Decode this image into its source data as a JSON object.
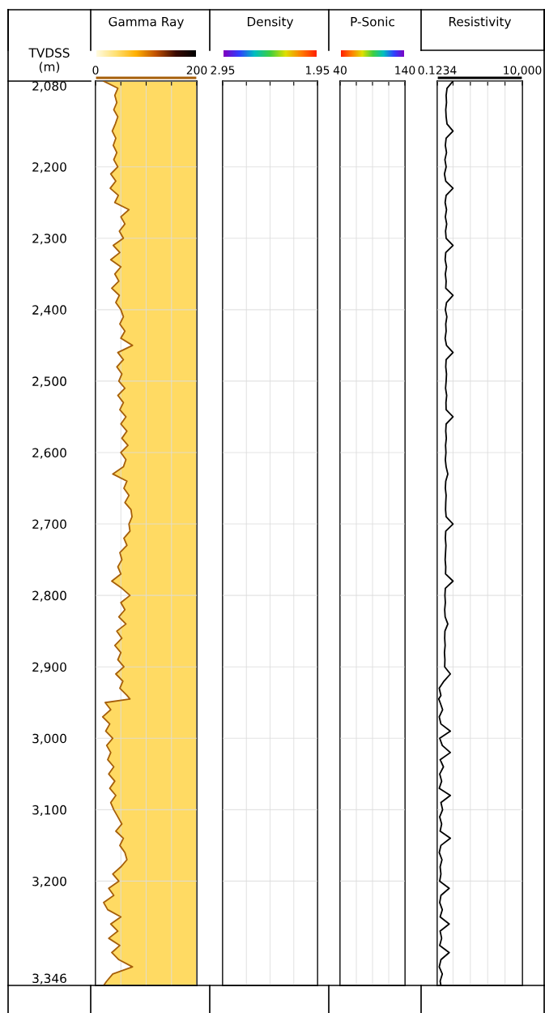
{
  "chart_data": [
    {
      "type": "line",
      "title": "Gamma Ray",
      "ylabel": "TVDSS\n(m)",
      "xlim": [
        0,
        200
      ],
      "xticks": [
        0,
        {
          "value": 50,
          "label": null
        },
        {
          "value": 100,
          "label": null
        },
        {
          "value": 150,
          "label": null
        },
        200
      ],
      "ylim": [
        3346,
        2080
      ],
      "yticks": [
        {
          "value": 2080,
          "label": "2,080"
        },
        {
          "value": 2200,
          "label": "2,200"
        },
        {
          "value": 2300,
          "label": "2,300"
        },
        {
          "value": 2400,
          "label": "2,400"
        },
        {
          "value": 2500,
          "label": "2,500"
        },
        {
          "value": 2600,
          "label": "2,600"
        },
        {
          "value": 2700,
          "label": "2,700"
        },
        {
          "value": 2800,
          "label": "2,800"
        },
        {
          "value": 2900,
          "label": "2,900"
        },
        {
          "value": 3000,
          "label": "3,000"
        },
        {
          "value": 3100,
          "label": "3,100"
        },
        {
          "value": 3200,
          "label": "3,200"
        },
        {
          "value": 3346,
          "label": "3,346"
        }
      ],
      "grid": true,
      "series": [
        {
          "color": "#a65f0a",
          "x": [
            16,
            44,
            38,
            42,
            36,
            44,
            39,
            33,
            40,
            35,
            42,
            36,
            44,
            30,
            40,
            29,
            45,
            38,
            66,
            50,
            58,
            47,
            55,
            35,
            48,
            30,
            50,
            38,
            46,
            32,
            47,
            40,
            50,
            55,
            48,
            58,
            50,
            73,
            44,
            55,
            42,
            52,
            46,
            58,
            44,
            55,
            48,
            60,
            50,
            62,
            52,
            64,
            50,
            60,
            55,
            34,
            62,
            56,
            66,
            58,
            70,
            72,
            66,
            68,
            56,
            62,
            48,
            52,
            44,
            50,
            32,
            52,
            68,
            50,
            58,
            46,
            60,
            42,
            52,
            38,
            50,
            44,
            56,
            40,
            54,
            48,
            62,
            68,
            19,
            30,
            14,
            28,
            20,
            34,
            22,
            30,
            24,
            36,
            26,
            38,
            28,
            40,
            30,
            36,
            44,
            52,
            40,
            55,
            48,
            58,
            62,
            50,
            34,
            46,
            26,
            36,
            16,
            24,
            50,
            30,
            44,
            26,
            48,
            32,
            46,
            73,
            34,
            22,
            16
          ],
          "values": [
            2080,
            2090,
            2100,
            2110,
            2120,
            2130,
            2140,
            2150,
            2160,
            2170,
            2180,
            2190,
            2200,
            2210,
            2220,
            2230,
            2240,
            2250,
            2260,
            2270,
            2280,
            2290,
            2300,
            2310,
            2320,
            2330,
            2340,
            2350,
            2360,
            2370,
            2380,
            2390,
            2400,
            2410,
            2420,
            2430,
            2440,
            2450,
            2460,
            2470,
            2480,
            2490,
            2500,
            2510,
            2520,
            2530,
            2540,
            2550,
            2560,
            2570,
            2580,
            2590,
            2600,
            2610,
            2620,
            2630,
            2640,
            2650,
            2660,
            2670,
            2680,
            2690,
            2700,
            2710,
            2720,
            2730,
            2740,
            2750,
            2760,
            2770,
            2780,
            2790,
            2800,
            2810,
            2820,
            2830,
            2840,
            2850,
            2860,
            2870,
            2880,
            2890,
            2900,
            2910,
            2920,
            2930,
            2940,
            2945,
            2950,
            2960,
            2970,
            2980,
            2990,
            3000,
            3010,
            3020,
            3030,
            3040,
            3050,
            3060,
            3070,
            3080,
            3090,
            3100,
            3110,
            3120,
            3130,
            3140,
            3150,
            3160,
            3170,
            3180,
            3190,
            3200,
            3210,
            3220,
            3230,
            3240,
            3250,
            3260,
            3270,
            3280,
            3290,
            3300,
            3310,
            3320,
            3330,
            3340,
            3346
          ]
        }
      ]
    },
    {
      "type": "line",
      "title": "Density",
      "xlim": [
        2.95,
        1.95
      ],
      "xticks": [
        2.95,
        {
          "value": 2.7,
          "label": null
        },
        {
          "value": 2.45,
          "label": null
        },
        {
          "value": 2.2,
          "label": null
        },
        1.95
      ],
      "ylim": [
        3346,
        2080
      ],
      "yticks": [
        2080,
        2200,
        2300,
        2400,
        2500,
        2600,
        2700,
        2800,
        2900,
        3000,
        3100,
        3200,
        3346
      ],
      "grid": true,
      "tick_labels": "x"
    },
    {
      "type": "line",
      "title": "P-Sonic",
      "xlim": [
        40,
        140
      ],
      "xticks": [
        40,
        {
          "value": 65,
          "label": null
        },
        {
          "value": 90,
          "label": null
        },
        {
          "value": 115,
          "label": null
        },
        140
      ],
      "ylim": [
        3346,
        2080
      ],
      "yticks": [
        2080,
        2200,
        2300,
        2400,
        2500,
        2600,
        2700,
        2800,
        2900,
        3000,
        3100,
        3200,
        3346
      ],
      "grid": true,
      "tick_labels": "x"
    },
    {
      "type": "line",
      "title": "Resistivity",
      "log": "x",
      "xlim": [
        0.1234,
        10000
      ],
      "xticks": [
        {
          "value": 0.1234,
          "label": "0.1234"
        },
        {
          "value": 1,
          "label": null
        },
        {
          "value": 10,
          "label": null
        },
        {
          "value": 100,
          "label": null
        },
        {
          "value": 1000,
          "label": null
        },
        {
          "value": 10000,
          "label": "10,000"
        }
      ],
      "ylim": [
        3346,
        2080
      ],
      "yticks": [
        2080,
        2200,
        2300,
        2400,
        2500,
        2600,
        2700,
        2800,
        2900,
        3000,
        3100,
        3200,
        3346
      ],
      "grid": true,
      "tick_labels": "x",
      "series": [
        {
          "color": "#000000",
          "x": [
            1.0,
            0.45,
            0.4,
            0.42,
            0.38,
            0.4,
            0.45,
            1.0,
            0.4,
            0.36,
            0.42,
            0.34,
            0.4,
            0.32,
            0.38,
            1.0,
            0.4,
            0.35,
            0.42,
            0.36,
            0.43,
            0.37,
            0.4,
            1.0,
            0.38,
            0.35,
            0.42,
            0.36,
            0.4,
            0.38,
            1.0,
            0.42,
            0.36,
            0.44,
            0.38,
            0.4,
            0.35,
            0.42,
            1.0,
            0.4,
            0.38,
            0.42,
            0.4,
            0.37,
            0.43,
            0.39,
            0.4,
            1.0,
            0.4,
            0.38,
            0.41,
            0.37,
            0.39,
            0.36,
            0.4,
            0.5,
            0.38,
            0.36,
            0.4,
            0.38,
            0.37,
            0.4,
            1.0,
            0.38,
            0.36,
            0.39,
            0.37,
            0.35,
            0.38,
            0.37,
            1.0,
            0.36,
            0.34,
            0.36,
            0.33,
            0.35,
            0.5,
            0.34,
            0.33,
            0.35,
            0.32,
            0.34,
            0.33,
            0.7,
            0.3,
            0.16,
            0.2,
            0.15,
            0.18,
            0.25,
            0.16,
            0.2,
            0.7,
            0.17,
            0.24,
            0.7,
            0.18,
            0.28,
            0.17,
            0.22,
            0.16,
            0.7,
            0.2,
            0.25,
            0.17,
            0.22,
            0.18,
            0.7,
            0.2,
            0.16,
            0.23,
            0.18,
            0.2,
            0.17,
            0.6,
            0.2,
            0.17,
            0.24,
            0.18,
            0.6,
            0.18,
            0.22,
            0.17,
            0.6,
            0.2,
            0.16,
            0.24,
            0.18,
            0.2
          ],
          "values": [
            2080,
            2090,
            2100,
            2110,
            2120,
            2130,
            2140,
            2150,
            2160,
            2170,
            2180,
            2190,
            2200,
            2210,
            2220,
            2230,
            2240,
            2250,
            2260,
            2270,
            2280,
            2290,
            2300,
            2310,
            2320,
            2330,
            2340,
            2350,
            2360,
            2370,
            2380,
            2390,
            2400,
            2410,
            2420,
            2430,
            2440,
            2450,
            2460,
            2470,
            2480,
            2490,
            2500,
            2510,
            2520,
            2530,
            2540,
            2550,
            2560,
            2570,
            2580,
            2590,
            2600,
            2610,
            2620,
            2630,
            2640,
            2650,
            2660,
            2670,
            2680,
            2690,
            2700,
            2710,
            2720,
            2730,
            2740,
            2750,
            2760,
            2770,
            2780,
            2790,
            2800,
            2810,
            2820,
            2830,
            2840,
            2850,
            2860,
            2870,
            2880,
            2890,
            2900,
            2910,
            2920,
            2930,
            2940,
            2945,
            2950,
            2960,
            2970,
            2980,
            2990,
            3000,
            3010,
            3020,
            3030,
            3040,
            3050,
            3060,
            3070,
            3080,
            3090,
            3100,
            3110,
            3120,
            3130,
            3140,
            3150,
            3160,
            3170,
            3180,
            3190,
            3200,
            3210,
            3220,
            3230,
            3240,
            3250,
            3260,
            3270,
            3280,
            3290,
            3300,
            3310,
            3320,
            3330,
            3340,
            3346
          ]
        }
      ]
    }
  ]
}
